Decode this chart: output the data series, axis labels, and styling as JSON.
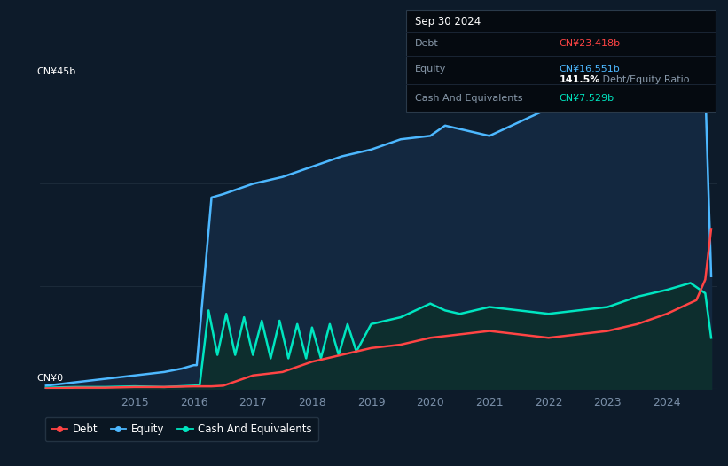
{
  "background_color": "#0d1b2a",
  "plot_bg_color": "#0d1b2a",
  "title_box": {
    "date": "Sep 30 2024",
    "debt_label": "Debt",
    "debt_value": "CN¥23.418b",
    "equity_label": "Equity",
    "equity_value": "CN¥16.551b",
    "ratio_text": "141.5% Debt/Equity Ratio",
    "cash_label": "Cash And Equivalents",
    "cash_value": "CN¥7.529b"
  },
  "ylabel_top": "CN¥45b",
  "ylabel_bottom": "CN¥0",
  "grid_color": "#1e2d3d",
  "legend": [
    {
      "label": "Debt",
      "color": "#ff4444"
    },
    {
      "label": "Equity",
      "color": "#4db8ff"
    },
    {
      "label": "Cash And Equivalents",
      "color": "#00e5c0"
    }
  ],
  "equity": {
    "color": "#4db8ff",
    "fill_color": "#132840",
    "x": [
      2013.5,
      2014.0,
      2014.5,
      2015.0,
      2015.5,
      2015.8,
      2016.0,
      2016.05,
      2016.3,
      2016.5,
      2017.0,
      2017.5,
      2018.0,
      2018.5,
      2019.0,
      2019.5,
      2020.0,
      2020.25,
      2020.5,
      2021.0,
      2021.5,
      2022.0,
      2022.5,
      2023.0,
      2023.5,
      2024.0,
      2024.4,
      2024.65,
      2024.75
    ],
    "y": [
      0.5,
      1.0,
      1.5,
      2.0,
      2.5,
      3.0,
      3.5,
      3.5,
      28.0,
      28.5,
      30.0,
      31.0,
      32.5,
      34.0,
      35.0,
      36.5,
      37.0,
      38.5,
      38.0,
      37.0,
      39.0,
      41.0,
      42.0,
      43.0,
      43.5,
      44.5,
      45.5,
      44.0,
      16.5
    ]
  },
  "debt": {
    "color": "#ff4444",
    "x": [
      2013.5,
      2014.0,
      2014.5,
      2015.0,
      2015.5,
      2016.0,
      2016.3,
      2016.5,
      2017.0,
      2017.5,
      2018.0,
      2018.5,
      2019.0,
      2019.5,
      2020.0,
      2020.5,
      2021.0,
      2021.5,
      2022.0,
      2022.5,
      2023.0,
      2023.5,
      2024.0,
      2024.5,
      2024.65,
      2024.75
    ],
    "y": [
      0.1,
      0.2,
      0.2,
      0.3,
      0.3,
      0.4,
      0.4,
      0.5,
      2.0,
      2.5,
      4.0,
      5.0,
      6.0,
      6.5,
      7.5,
      8.0,
      8.5,
      8.0,
      7.5,
      8.0,
      8.5,
      9.5,
      11.0,
      13.0,
      16.0,
      23.4
    ]
  },
  "cash": {
    "color": "#00e5c0",
    "fill_color": "#0a2a28",
    "x": [
      2013.5,
      2014.0,
      2014.5,
      2015.0,
      2015.5,
      2016.0,
      2016.1,
      2016.25,
      2016.4,
      2016.55,
      2016.7,
      2016.85,
      2017.0,
      2017.15,
      2017.3,
      2017.45,
      2017.6,
      2017.75,
      2017.9,
      2018.0,
      2018.15,
      2018.3,
      2018.45,
      2018.6,
      2018.75,
      2019.0,
      2019.5,
      2020.0,
      2020.25,
      2020.5,
      2021.0,
      2021.5,
      2022.0,
      2022.5,
      2023.0,
      2023.5,
      2024.0,
      2024.4,
      2024.65,
      2024.75
    ],
    "y": [
      0.2,
      0.3,
      0.3,
      0.4,
      0.3,
      0.5,
      0.6,
      11.5,
      5.0,
      11.0,
      5.0,
      10.5,
      5.0,
      10.0,
      4.5,
      10.0,
      4.5,
      9.5,
      4.5,
      9.0,
      4.5,
      9.5,
      5.0,
      9.5,
      5.5,
      9.5,
      10.5,
      12.5,
      11.5,
      11.0,
      12.0,
      11.5,
      11.0,
      11.5,
      12.0,
      13.5,
      14.5,
      15.5,
      14.0,
      7.5
    ]
  },
  "xlim": [
    2013.4,
    2024.85
  ],
  "ylim": [
    0,
    48
  ],
  "yticks": [
    0,
    15,
    30,
    45
  ],
  "xticks": [
    2015,
    2016,
    2017,
    2018,
    2019,
    2020,
    2021,
    2022,
    2023,
    2024
  ]
}
